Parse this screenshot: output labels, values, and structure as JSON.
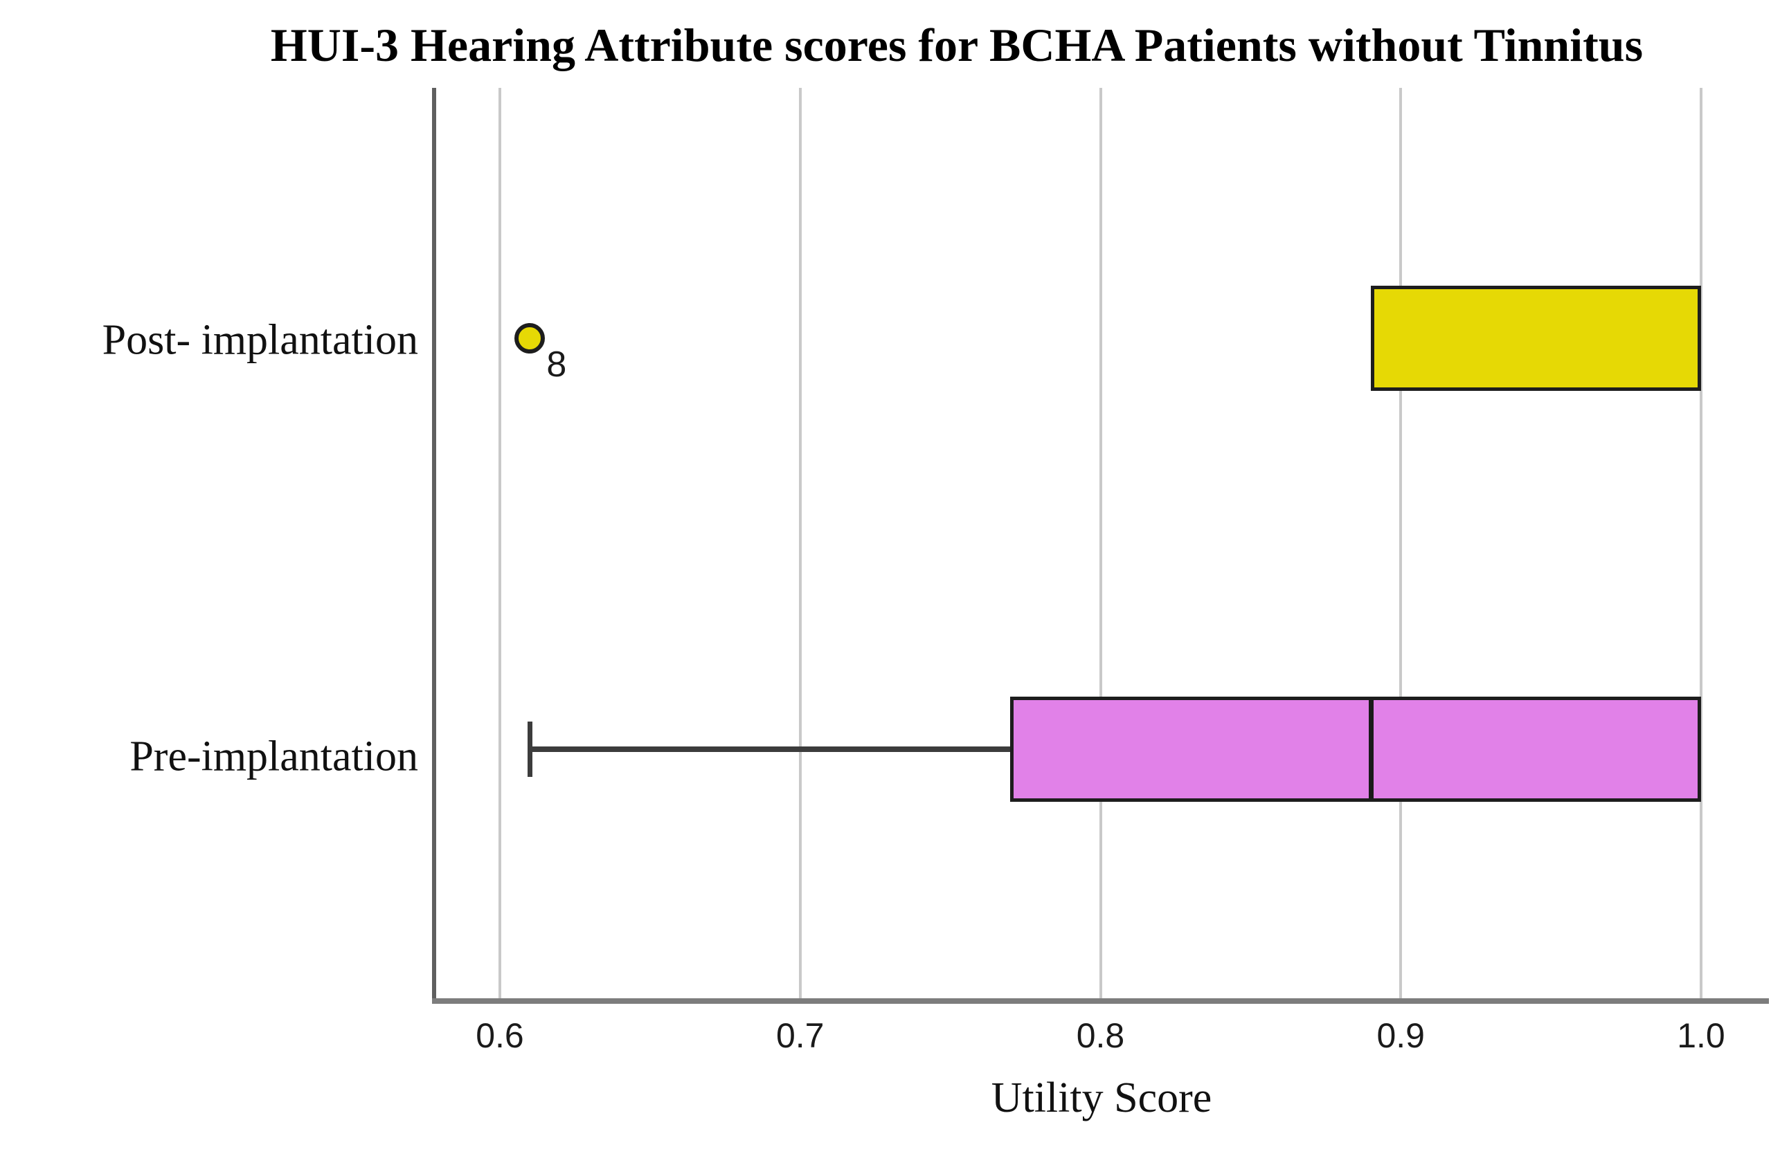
{
  "title": "HUI-3 Hearing Attribute scores for BCHA Patients without Tinnitus",
  "chart_data": {
    "type": "boxplot",
    "orientation": "horizontal",
    "title": "HUI-3 Hearing Attribute scores for BCHA Patients without Tinnitus",
    "xlabel": "Utility Score",
    "ylabel": "",
    "categories": [
      "Post- implantation",
      "Pre-implantation"
    ],
    "x_ticks": [
      0.6,
      0.7,
      0.8,
      0.9,
      1.0
    ],
    "x_tick_labels": [
      "0.6",
      "0.7",
      "0.8",
      "0.9",
      "1.0"
    ],
    "xlim": [
      0.578,
      1.023
    ],
    "grid": "vertical-gridlines",
    "legend": "none",
    "series": [
      {
        "name": "Post- implantation",
        "box_color": "#e6d905",
        "q1": 0.89,
        "median": 1.0,
        "q3": 1.0,
        "whisker_low": 0.89,
        "whisker_high": 1.0,
        "outliers": [
          {
            "value": 0.61,
            "label": "8"
          }
        ]
      },
      {
        "name": "Pre-implantation",
        "box_color": "#e181e8",
        "q1": 0.77,
        "median": 0.89,
        "q3": 1.0,
        "whisker_low": 0.61,
        "whisker_high": 1.0,
        "outliers": []
      }
    ],
    "colors": {
      "post_box": "#e6d905",
      "pre_box": "#e181e8",
      "box_border": "#1d1d1d",
      "whisker": "#3c3c3c",
      "gridline": "#c9c9c9",
      "x_axis_line": "#7d7d7d",
      "y_axis_line": "#5f5f5f",
      "text": "#111111"
    }
  }
}
